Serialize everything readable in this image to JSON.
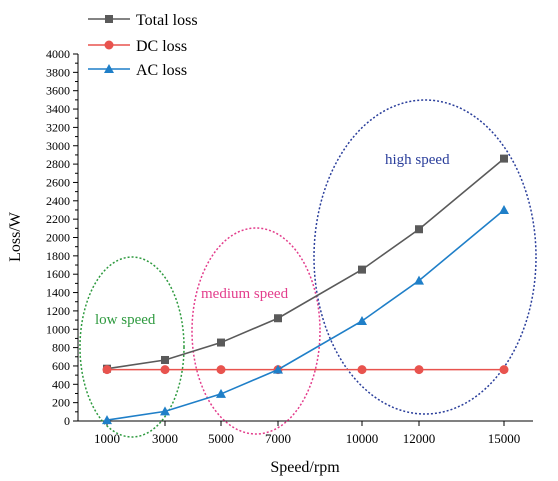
{
  "chart_data": {
    "type": "line",
    "xlabel": "Speed/rpm",
    "ylabel": "Loss/W",
    "categories": [
      "1000",
      "3000",
      "5000",
      "7000",
      "10000",
      "12000",
      "15000"
    ],
    "ylim": [
      0,
      4000
    ],
    "y_ticks": [
      "0",
      "200",
      "400",
      "600",
      "800",
      "1000",
      "1200",
      "1400",
      "1600",
      "1800",
      "2000",
      "2200",
      "2400",
      "2600",
      "2800",
      "3000",
      "3200",
      "3400",
      "3600",
      "3800",
      "4000"
    ],
    "grid": false,
    "legend_position": "top-left",
    "series": [
      {
        "name": "Total loss",
        "color": "#5a5a5a",
        "marker": "square",
        "values": [
          570,
          665,
          855,
          1120,
          1650,
          2090,
          2860
        ]
      },
      {
        "name": "DC loss",
        "color": "#e8534e",
        "marker": "circle",
        "values": [
          560,
          560,
          560,
          560,
          560,
          560,
          560
        ]
      },
      {
        "name": "AC loss",
        "color": "#1f7fc8",
        "marker": "triangle",
        "values": [
          10,
          105,
          295,
          560,
          1090,
          1530,
          2300
        ]
      }
    ],
    "annotations": [
      {
        "text": "low speed",
        "color": "#2e9a3f"
      },
      {
        "text": "medium speed",
        "color": "#e33d8c"
      },
      {
        "text": "high speed",
        "color": "#2a3e9b"
      }
    ]
  }
}
